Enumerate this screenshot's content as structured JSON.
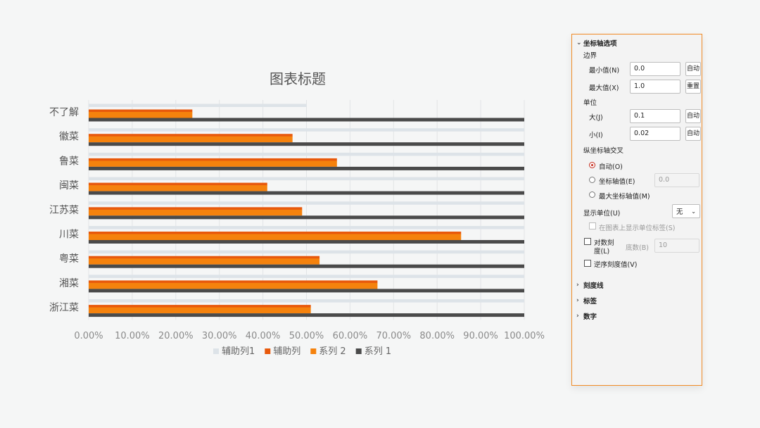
{
  "chart_data": {
    "type": "bar",
    "orientation": "horizontal",
    "title": "图表标题",
    "categories": [
      "不了解",
      "徽菜",
      "鲁菜",
      "闽菜",
      "江苏菜",
      "川菜",
      "粤菜",
      "湘菜",
      "浙江菜"
    ],
    "series": [
      {
        "name": "辅助列1",
        "color": "#dde3e8",
        "values": [
          0.5,
          1.0,
          1.0,
          1.0,
          1.0,
          1.0,
          1.0,
          1.0,
          1.0
        ]
      },
      {
        "name": "辅助列",
        "color": "#e8590c",
        "values": [
          0.238,
          0.468,
          0.57,
          0.41,
          0.49,
          0.855,
          0.53,
          0.663,
          0.51
        ]
      },
      {
        "name": "系列 2",
        "color": "#f5820d",
        "values": [
          0.238,
          0.468,
          0.57,
          0.41,
          0.49,
          0.855,
          0.53,
          0.663,
          0.51
        ]
      },
      {
        "name": "系列 1",
        "color": "#4a4a4a",
        "values": [
          1.0,
          1.0,
          1.0,
          1.0,
          1.0,
          1.0,
          1.0,
          1.0,
          1.0
        ]
      }
    ],
    "xlim": [
      0,
      1.0
    ],
    "x_ticks": [
      "0.00%",
      "10.00%",
      "20.00%",
      "30.00%",
      "40.00%",
      "50.00%",
      "60.00%",
      "70.00%",
      "80.00%",
      "90.00%",
      "100.00%"
    ],
    "grid": true,
    "legend": "bottom"
  },
  "pane": {
    "axis_options_title": "坐标轴选项",
    "bounds_label": "边界",
    "min_label": "最小值(N)",
    "min_value": "0.0",
    "min_button": "自动",
    "max_label": "最大值(X)",
    "max_value": "1.0",
    "max_button": "重置",
    "units_label": "单位",
    "major_label": "大(J)",
    "major_value": "0.1",
    "major_button": "自动",
    "minor_label": "小(I)",
    "minor_value": "0.02",
    "minor_button": "自动",
    "cross_label": "纵坐标轴交叉",
    "cross_auto": "自动(O)",
    "cross_value_label": "坐标轴值(E)",
    "cross_value": "0.0",
    "cross_max": "最大坐标轴值(M)",
    "display_units_label": "显示单位(U)",
    "display_units_value": "无",
    "show_units_label": "在图表上显示单位标签(S)",
    "log_scale_label_1": "对数刻",
    "log_scale_label_2": "度(L)",
    "log_base_label": "底数(B)",
    "log_base_value": "10",
    "reverse_label": "逆序刻度值(V)",
    "tick_marks": "刻度线",
    "labels": "标签",
    "number": "数字"
  }
}
